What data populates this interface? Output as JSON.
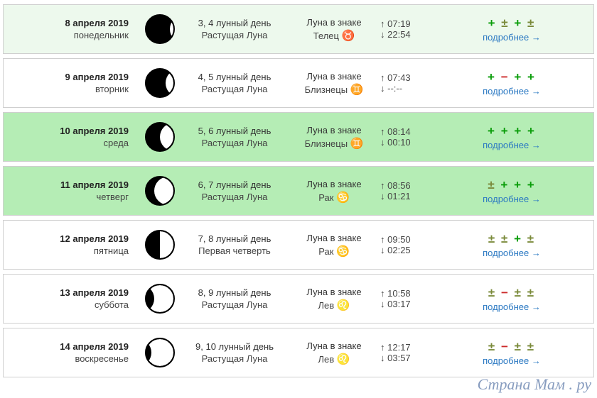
{
  "link_text": "подробнее →",
  "moonrise_prefix": "↑ ",
  "moonset_prefix": "↓ ",
  "watermark": "Страна Мам . ру",
  "rating_colors": {
    "g": "#0a9d0a",
    "o": "#7a8a3a",
    "r": "#cc2a2a"
  },
  "row_bg": {
    "white": "#ffffff",
    "light": "#edf9ed",
    "green": "#b5edb5"
  },
  "border_color": "#cfcfcf",
  "rows": [
    {
      "bg": "light",
      "date": "8 апреля 2019",
      "weekday": "понедельник",
      "moon_phase_svg": "waxing-crescent-1",
      "lunar_day": "3, 4 лунный день",
      "phase_name": "Растущая Луна",
      "zodiac_label": "Луна в знаке",
      "zodiac_name": "Телец",
      "zodiac_symbol": "♉",
      "moonrise": "07:19",
      "moonset": "22:54",
      "rating": [
        {
          "sym": "+",
          "cls": "g"
        },
        {
          "sym": "±",
          "cls": "o"
        },
        {
          "sym": "+",
          "cls": "g"
        },
        {
          "sym": "±",
          "cls": "o"
        }
      ]
    },
    {
      "bg": "white",
      "date": "9 апреля 2019",
      "weekday": "вторник",
      "moon_phase_svg": "waxing-crescent-2",
      "lunar_day": "4, 5 лунный день",
      "phase_name": "Растущая Луна",
      "zodiac_label": "Луна в знаке",
      "zodiac_name": "Близнецы",
      "zodiac_symbol": "♊",
      "moonrise": "07:43",
      "moonset": "--:--",
      "rating": [
        {
          "sym": "+",
          "cls": "g"
        },
        {
          "sym": "−",
          "cls": "r"
        },
        {
          "sym": "+",
          "cls": "g"
        },
        {
          "sym": "+",
          "cls": "g"
        }
      ]
    },
    {
      "bg": "green",
      "date": "10 апреля 2019",
      "weekday": "среда",
      "moon_phase_svg": "waxing-crescent-3",
      "lunar_day": "5, 6 лунный день",
      "phase_name": "Растущая Луна",
      "zodiac_label": "Луна в знаке",
      "zodiac_name": "Близнецы",
      "zodiac_symbol": "♊",
      "moonrise": "08:14",
      "moonset": "00:10",
      "rating": [
        {
          "sym": "+",
          "cls": "g"
        },
        {
          "sym": "+",
          "cls": "g"
        },
        {
          "sym": "+",
          "cls": "g"
        },
        {
          "sym": "+",
          "cls": "g"
        }
      ]
    },
    {
      "bg": "green",
      "date": "11 апреля 2019",
      "weekday": "четверг",
      "moon_phase_svg": "waxing-crescent-4",
      "lunar_day": "6, 7 лунный день",
      "phase_name": "Растущая Луна",
      "zodiac_label": "Луна в знаке",
      "zodiac_name": "Рак",
      "zodiac_symbol": "♋",
      "moonrise": "08:56",
      "moonset": "01:21",
      "rating": [
        {
          "sym": "±",
          "cls": "o"
        },
        {
          "sym": "+",
          "cls": "g"
        },
        {
          "sym": "+",
          "cls": "g"
        },
        {
          "sym": "+",
          "cls": "g"
        }
      ]
    },
    {
      "bg": "white",
      "date": "12 апреля 2019",
      "weekday": "пятница",
      "moon_phase_svg": "first-quarter",
      "lunar_day": "7, 8 лунный день",
      "phase_name": "Первая четверть",
      "zodiac_label": "Луна в знаке",
      "zodiac_name": "Рак",
      "zodiac_symbol": "♋",
      "moonrise": "09:50",
      "moonset": "02:25",
      "rating": [
        {
          "sym": "±",
          "cls": "o"
        },
        {
          "sym": "±",
          "cls": "o"
        },
        {
          "sym": "+",
          "cls": "g"
        },
        {
          "sym": "±",
          "cls": "o"
        }
      ]
    },
    {
      "bg": "white",
      "date": "13 апреля 2019",
      "weekday": "суббота",
      "moon_phase_svg": "waxing-gibbous-1",
      "lunar_day": "8, 9 лунный день",
      "phase_name": "Растущая Луна",
      "zodiac_label": "Луна в знаке",
      "zodiac_name": "Лев",
      "zodiac_symbol": "♌",
      "moonrise": "10:58",
      "moonset": "03:17",
      "rating": [
        {
          "sym": "±",
          "cls": "o"
        },
        {
          "sym": "−",
          "cls": "r"
        },
        {
          "sym": "±",
          "cls": "o"
        },
        {
          "sym": "±",
          "cls": "o"
        }
      ]
    },
    {
      "bg": "white",
      "date": "14 апреля 2019",
      "weekday": "воскресенье",
      "moon_phase_svg": "waxing-gibbous-2",
      "lunar_day": "9, 10 лунный день",
      "phase_name": "Растущая Луна",
      "zodiac_label": "Луна в знаке",
      "zodiac_name": "Лев",
      "zodiac_symbol": "♌",
      "moonrise": "12:17",
      "moonset": "03:57",
      "rating": [
        {
          "sym": "±",
          "cls": "o"
        },
        {
          "sym": "−",
          "cls": "r"
        },
        {
          "sym": "±",
          "cls": "o"
        },
        {
          "sym": "±",
          "cls": "o"
        }
      ]
    }
  ]
}
